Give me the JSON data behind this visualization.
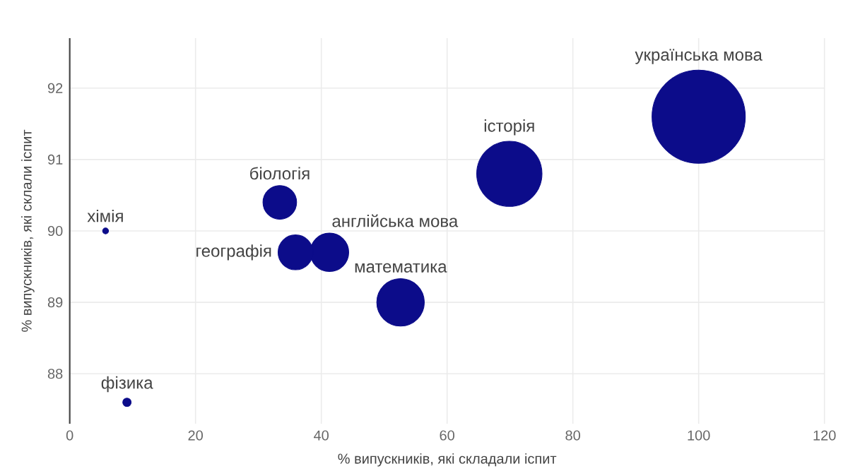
{
  "chart_data": {
    "type": "bubble",
    "xlabel": "% випускників, які складали іспит",
    "ylabel": "% випускників, які склали іспит",
    "color": "#0c0c8a",
    "marker": "circle",
    "grid": true,
    "xlim": [
      0,
      120
    ],
    "ylim": [
      87.3,
      92.7
    ],
    "xticks": [
      0,
      20,
      40,
      60,
      80,
      100,
      120
    ],
    "yticks": [
      88,
      89,
      90,
      91,
      92
    ],
    "series": [
      {
        "name": "українська мова",
        "x": [
          100
        ],
        "values": [
          91.6
        ],
        "sizes": [
          1
        ]
      },
      {
        "name": "історія",
        "x": [
          69.9
        ],
        "values": [
          90.8
        ],
        "sizes": [
          0.49
        ]
      },
      {
        "name": "математика",
        "x": [
          52.6
        ],
        "values": [
          89.0
        ],
        "sizes": [
          0.26
        ]
      },
      {
        "name": "англійська мова",
        "x": [
          41.3
        ],
        "values": [
          89.7
        ],
        "sizes": [
          0.17
        ]
      },
      {
        "name": "географія",
        "x": [
          35.9
        ],
        "values": [
          89.7
        ],
        "sizes": [
          0.14
        ]
      },
      {
        "name": "біологія",
        "x": [
          33.4
        ],
        "values": [
          90.4
        ],
        "sizes": [
          0.13
        ]
      },
      {
        "name": "фізика",
        "x": [
          9.1
        ],
        "values": [
          87.6
        ],
        "sizes": [
          0.008
        ]
      },
      {
        "name": "хімія",
        "x": [
          5.7
        ],
        "values": [
          90.0
        ],
        "sizes": [
          0.004
        ]
      }
    ]
  }
}
